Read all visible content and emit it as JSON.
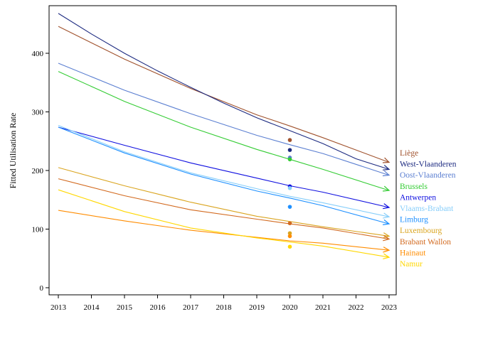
{
  "chart_data": {
    "type": "line",
    "title": "",
    "xlabel": "",
    "ylabel": "Fitted Utilisation Rate",
    "xlim": [
      2013,
      2023
    ],
    "ylim": [
      0,
      480
    ],
    "x_ticks": [
      2013,
      2014,
      2015,
      2016,
      2017,
      2018,
      2019,
      2020,
      2021,
      2022,
      2023
    ],
    "y_ticks": [
      0,
      100,
      200,
      300,
      400
    ],
    "grid": false,
    "legend_position": "right",
    "series": [
      {
        "name": "Liège",
        "color": "#a0522d",
        "x": [
          2013,
          2015,
          2017,
          2019,
          2020,
          2021,
          2023
        ],
        "y": [
          446,
          390,
          340,
          295,
          276,
          256,
          214
        ],
        "point": {
          "x": 2020,
          "y": 252
        }
      },
      {
        "name": "West-Vlaanderen",
        "color": "#1c2a80",
        "x": [
          2013,
          2014,
          2015,
          2016,
          2017,
          2018,
          2019,
          2020,
          2021,
          2022,
          2023
        ],
        "y": [
          468,
          433,
          400,
          370,
          342,
          315,
          290,
          268,
          246,
          220,
          202
        ],
        "point": {
          "x": 2020,
          "y": 235
        }
      },
      {
        "name": "Oost-Vlaanderen",
        "color": "#5b7fd1",
        "x": [
          2013,
          2015,
          2017,
          2019,
          2020,
          2021,
          2023
        ],
        "y": [
          383,
          337,
          297,
          260,
          244,
          229,
          192
        ],
        "point": {
          "x": 2020,
          "y": 222
        }
      },
      {
        "name": "Brussels",
        "color": "#33cc33",
        "x": [
          2013,
          2015,
          2017,
          2019,
          2020,
          2021,
          2023
        ],
        "y": [
          369,
          318,
          274,
          236,
          219,
          202,
          166
        ],
        "point": {
          "x": 2020,
          "y": 219
        }
      },
      {
        "name": "Antwerpen",
        "color": "#1010e0",
        "x": [
          2013,
          2015,
          2017,
          2019,
          2020,
          2021,
          2023
        ],
        "y": [
          274,
          243,
          213,
          187,
          174,
          163,
          137
        ],
        "point": {
          "x": 2020,
          "y": 173
        }
      },
      {
        "name": "Vlaams-Brabant",
        "color": "#87cefa",
        "x": [
          2013,
          2015,
          2017,
          2019,
          2020,
          2021,
          2023
        ],
        "y": [
          277,
          232,
          196,
          169,
          156,
          145,
          121
        ],
        "point": {
          "x": 2020,
          "y": 170
        }
      },
      {
        "name": "Limburg",
        "color": "#1e90ff",
        "x": [
          2013,
          2015,
          2017,
          2019,
          2020,
          2021,
          2023
        ],
        "y": [
          274,
          230,
          194,
          165,
          153,
          140,
          109
        ],
        "point": {
          "x": 2020,
          "y": 138
        }
      },
      {
        "name": "Luxembourg",
        "color": "#daa520",
        "x": [
          2013,
          2015,
          2017,
          2019,
          2020,
          2021,
          2023
        ],
        "y": [
          205,
          174,
          146,
          122,
          113,
          104,
          88
        ],
        "point": {
          "x": 2020,
          "y": 93
        }
      },
      {
        "name": "Brabant Wallon",
        "color": "#d2691e",
        "x": [
          2013,
          2015,
          2017,
          2019,
          2020,
          2021,
          2023
        ],
        "y": [
          186,
          157,
          133,
          117,
          109,
          102,
          83
        ],
        "point": {
          "x": 2020,
          "y": 110
        }
      },
      {
        "name": "Hainaut",
        "color": "#ff8c00",
        "x": [
          2013,
          2015,
          2017,
          2019,
          2020,
          2021,
          2023
        ],
        "y": [
          132,
          114,
          98,
          86,
          80,
          76,
          64
        ],
        "point": {
          "x": 2020,
          "y": 88
        }
      },
      {
        "name": "Namur",
        "color": "#ffd700",
        "x": [
          2013,
          2015,
          2017,
          2019,
          2020,
          2021,
          2023
        ],
        "y": [
          167,
          130,
          102,
          85,
          78,
          71,
          52
        ],
        "point": {
          "x": 2020,
          "y": 70
        }
      }
    ]
  }
}
